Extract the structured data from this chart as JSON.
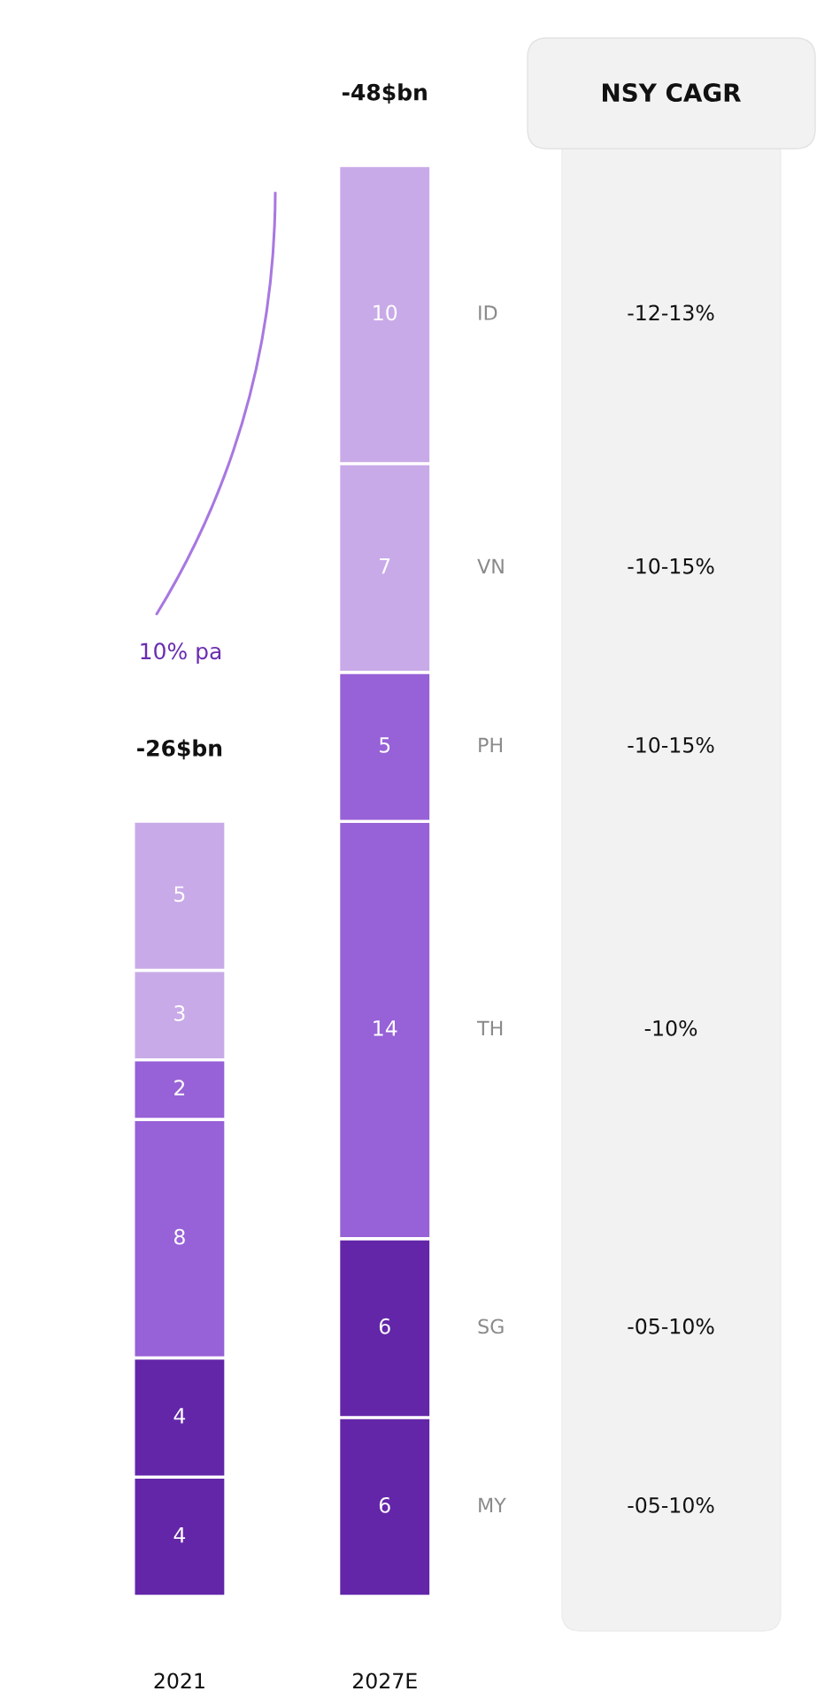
{
  "chart_data": [
    {
      "type": "bar",
      "stacked": true,
      "categories": [
        "2021",
        "2027E"
      ],
      "series": [
        {
          "name": "MY",
          "color": "#6326a9",
          "values": [
            4,
            6
          ]
        },
        {
          "name": "SG",
          "color": "#6326a9",
          "values": [
            4,
            6
          ]
        },
        {
          "name": "TH",
          "color": "#9761d7",
          "values": [
            8,
            14
          ]
        },
        {
          "name": "PH",
          "color": "#9761d7",
          "values": [
            2,
            5
          ]
        },
        {
          "name": "VN",
          "color": "#c9aae8",
          "values": [
            3,
            7
          ]
        },
        {
          "name": "ID",
          "color": "#c9aae8",
          "values": [
            5,
            10
          ]
        }
      ],
      "data_labels": true,
      "annotations": [
        "10% pa",
        {
          "text": "-26$bn",
          "x": "2021",
          "y": 26
        },
        {
          "text": "-48$bn",
          "x": "2027E",
          "y": 48
        }
      ]
    },
    {
      "type": "other",
      "title": "NSY CAGR",
      "annotations": [
        "-12-13%",
        "-10-15%",
        "-10-15%",
        "-10%",
        "-05-10%",
        "-05-10%"
      ]
    }
  ]
}
